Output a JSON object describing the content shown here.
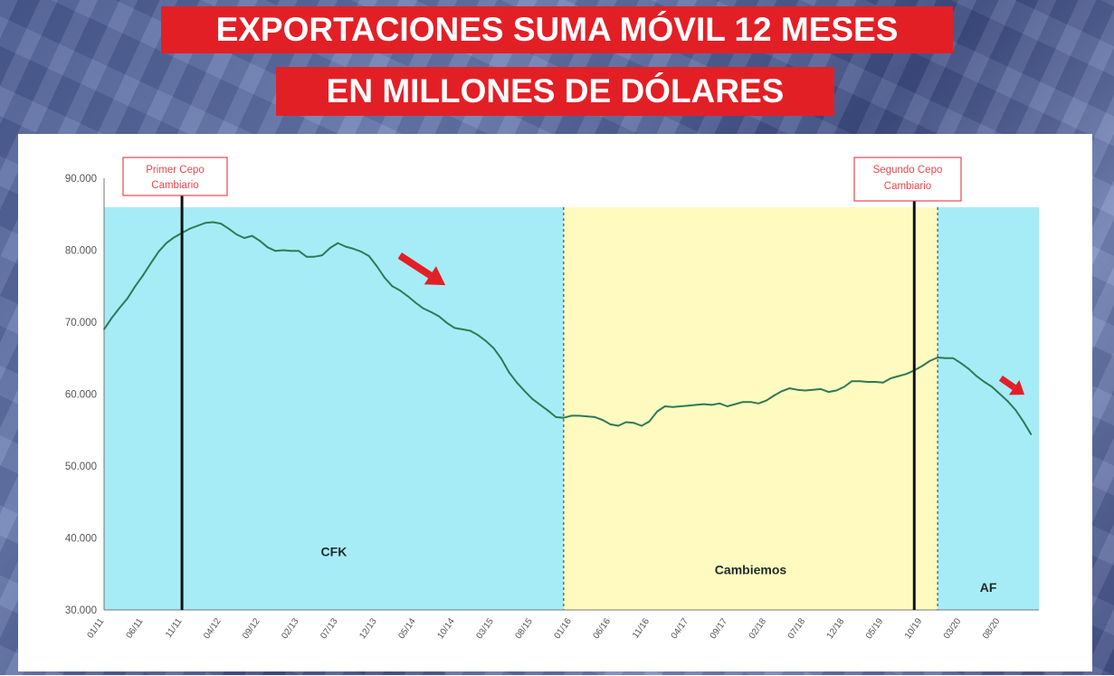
{
  "header": {
    "line1": "EXPORTACIONES SUMA MÓVIL 12 MESES",
    "line2": "EN MILLONES DE DÓLARES"
  },
  "colors": {
    "title_bg": "#e31f26",
    "cfk_zone": "#a6ecf7",
    "cambiemos_zone": "#fffbc0",
    "af_zone": "#a6ecf7",
    "line": "#2f7a57",
    "arrow": "#e31f26",
    "annotation_border": "#e8474e"
  },
  "icons": [
    "red-arrow-down-right-icon",
    "red-arrow-down-right-icon"
  ],
  "annotations": {
    "first": [
      "Primer Cepo",
      "Cambiario"
    ],
    "second": [
      "Segundo Cepo",
      "Cambiario"
    ]
  },
  "chart_data": {
    "type": "line",
    "title": "EXPORTACIONES SUMA MÓVIL 12 MESES EN MILLONES DE DÓLARES",
    "xlabel": "",
    "ylabel": "",
    "ylim": [
      30000,
      90000
    ],
    "y_ticks": [
      "30.000",
      "40.000",
      "50.000",
      "60.000",
      "70.000",
      "80.000",
      "90.000"
    ],
    "y_tick_values": [
      30000,
      40000,
      50000,
      60000,
      70000,
      80000,
      90000
    ],
    "x_ticks": [
      "01/11",
      "06/11",
      "11/11",
      "04/12",
      "09/12",
      "02/13",
      "07/13",
      "12/13",
      "05/14",
      "10/14",
      "03/15",
      "08/15",
      "01/16",
      "06/16",
      "11/16",
      "04/17",
      "09/17",
      "02/18",
      "07/18",
      "12/18",
      "05/19",
      "10/19",
      "03/20",
      "08/20"
    ],
    "x_range": [
      "01/11",
      "01/21"
    ],
    "grid": false,
    "legend": "none",
    "regions": [
      {
        "label": "CFK",
        "from": "01/11",
        "to": "12/15"
      },
      {
        "label": "Cambiemos",
        "from": "12/15",
        "to": "12/19"
      },
      {
        "label": "AF",
        "from": "12/19",
        "to": "01/21"
      }
    ],
    "events": [
      {
        "x": "11/11",
        "label": "Primer Cepo Cambiario"
      },
      {
        "x": "09/19",
        "label": "Segundo Cepo Cambiario"
      }
    ],
    "series": [
      {
        "x": [
          "01/11",
          "02/11",
          "03/11",
          "04/11",
          "05/11",
          "06/11",
          "07/11",
          "08/11",
          "09/11",
          "10/11",
          "11/11",
          "12/11",
          "01/12",
          "02/12",
          "03/12",
          "04/12",
          "05/12",
          "06/12",
          "07/12",
          "08/12",
          "09/12",
          "10/12",
          "11/12",
          "12/12",
          "01/13",
          "02/13",
          "03/13",
          "04/13",
          "05/13",
          "06/13",
          "07/13",
          "08/13",
          "09/13",
          "10/13",
          "11/13",
          "12/13",
          "01/14",
          "02/14",
          "03/14",
          "04/14",
          "05/14",
          "06/14",
          "07/14",
          "08/14",
          "09/14",
          "10/14",
          "11/14",
          "12/14",
          "01/15",
          "02/15",
          "03/15",
          "04/15",
          "05/15",
          "06/15",
          "07/15",
          "08/15",
          "09/15",
          "10/15",
          "11/15",
          "12/15",
          "01/16",
          "02/16",
          "03/16",
          "04/16",
          "05/16",
          "06/16",
          "07/16",
          "08/16",
          "09/16",
          "10/16",
          "11/16",
          "12/16",
          "01/17",
          "02/17",
          "03/17",
          "04/17",
          "05/17",
          "06/17",
          "07/17",
          "08/17",
          "09/17",
          "10/17",
          "11/17",
          "12/17",
          "01/18",
          "02/18",
          "03/18",
          "04/18",
          "05/18",
          "06/18",
          "07/18",
          "08/18",
          "09/18",
          "10/18",
          "11/18",
          "12/18",
          "01/19",
          "02/19",
          "03/19",
          "04/19",
          "05/19",
          "06/19",
          "07/19",
          "08/19",
          "09/19",
          "10/19",
          "11/19",
          "12/19",
          "01/20",
          "02/20",
          "03/20",
          "04/20",
          "05/20",
          "06/20",
          "07/20",
          "08/20",
          "09/20",
          "10/20",
          "11/20",
          "12/20"
        ],
        "values": [
          69000,
          70600,
          72000,
          73300,
          75000,
          76500,
          78200,
          79800,
          81000,
          81800,
          82400,
          83000,
          83400,
          83800,
          83900,
          83700,
          83000,
          82200,
          81700,
          82000,
          81300,
          80400,
          79900,
          80000,
          79900,
          79900,
          79100,
          79100,
          79300,
          80300,
          81000,
          80500,
          80200,
          79800,
          79200,
          77800,
          76200,
          75000,
          74400,
          73600,
          72700,
          71900,
          71400,
          70800,
          69900,
          69200,
          69000,
          68800,
          68200,
          67400,
          66400,
          64900,
          63000,
          61600,
          60400,
          59300,
          58500,
          57700,
          56800,
          56700,
          57000,
          57000,
          56900,
          56800,
          56400,
          55800,
          55600,
          56100,
          56000,
          55600,
          56200,
          57600,
          58300,
          58200,
          58300,
          58400,
          58500,
          58600,
          58500,
          58700,
          58300,
          58600,
          58900,
          58900,
          58700,
          59100,
          59800,
          60400,
          60800,
          60600,
          60500,
          60600,
          60700,
          60300,
          60500,
          61000,
          61800,
          61800,
          61700,
          61700,
          61600,
          62200,
          62500,
          62800,
          63300,
          63900,
          64600,
          65100,
          65000,
          65000,
          64300,
          63500,
          62500,
          61700,
          61000,
          60000,
          59000,
          57800,
          56200,
          54400
        ]
      }
    ]
  }
}
